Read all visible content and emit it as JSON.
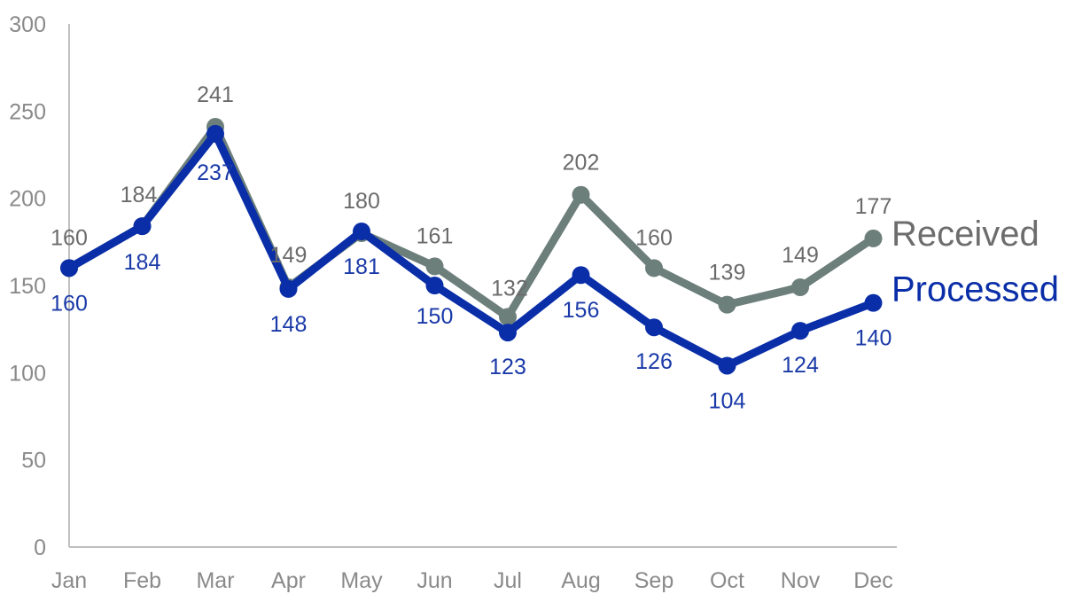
{
  "chart_data": {
    "type": "line",
    "categories": [
      "Jan",
      "Feb",
      "Mar",
      "Apr",
      "May",
      "Jun",
      "Jul",
      "Aug",
      "Sep",
      "Oct",
      "Nov",
      "Dec"
    ],
    "series": [
      {
        "name": "Received",
        "color": "#6d7f7b",
        "values": [
          160,
          184,
          241,
          149,
          180,
          161,
          132,
          202,
          160,
          139,
          149,
          177
        ]
      },
      {
        "name": "Processed",
        "color": "#0a2ea8",
        "values": [
          160,
          184,
          237,
          148,
          181,
          150,
          123,
          156,
          126,
          104,
          124,
          140
        ]
      }
    ],
    "ylim": [
      0,
      300
    ],
    "yticks": [
      0,
      50,
      100,
      150,
      200,
      250,
      300
    ],
    "legend": "right, at line ends",
    "grid": false
  }
}
